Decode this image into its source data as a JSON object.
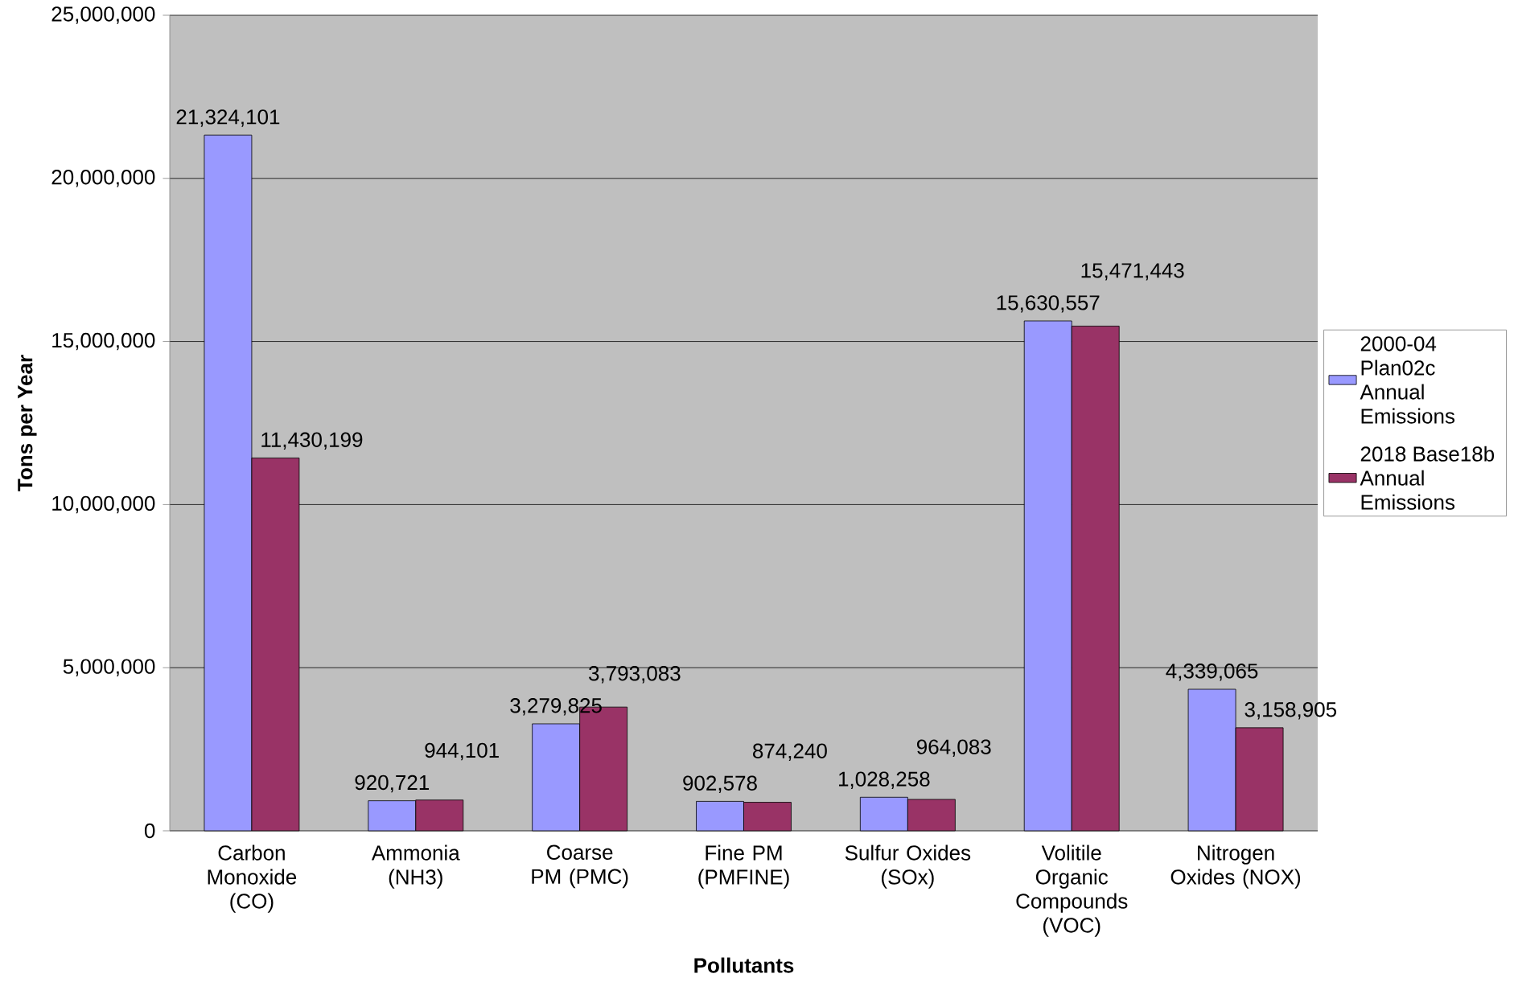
{
  "chart_data": {
    "type": "bar",
    "xlabel": "Pollutants",
    "ylabel": "Tons per Year",
    "categories": [
      "Carbon Monoxide (CO)",
      "Ammonia (NH3)",
      "Coarse PM (PMC)",
      "Fine PM (PMFINE)",
      "Sulfur Oxides (SOx)",
      "Volitile Organic Compounds (VOC)",
      "Nitrogen Oxides (NOX)"
    ],
    "series": [
      {
        "name": "2000-04 Plan02c Annual Emissions",
        "color": "#9999ff",
        "values": [
          21324101,
          920721,
          3279825,
          902578,
          1028258,
          15630557,
          4339065
        ],
        "value_labels": [
          "21,324,101",
          "920,721",
          "3,279,825",
          "902,578",
          "1,028,258",
          "15,630,557",
          "4,339,065"
        ]
      },
      {
        "name": "2018 Base18b Annual Emissions",
        "color": "#993366",
        "values": [
          11430199,
          944101,
          3793083,
          874240,
          964083,
          15471443,
          3158905
        ],
        "value_labels": [
          "11,430,199",
          "944,101",
          "3,793,083",
          "874,240",
          "964,083",
          "15,471,443",
          "3,158,905"
        ]
      }
    ],
    "ylim": [
      0,
      25000000
    ],
    "yticks": [
      {
        "value": 0,
        "label": "0"
      },
      {
        "value": 5000000,
        "label": "5,000,000"
      },
      {
        "value": 10000000,
        "label": "10,000,000"
      },
      {
        "value": 15000000,
        "label": "15,000,000"
      },
      {
        "value": 20000000,
        "label": "20,000,000"
      },
      {
        "value": 25000000,
        "label": "25,000,000"
      }
    ],
    "grid": "y",
    "legend": "right"
  }
}
